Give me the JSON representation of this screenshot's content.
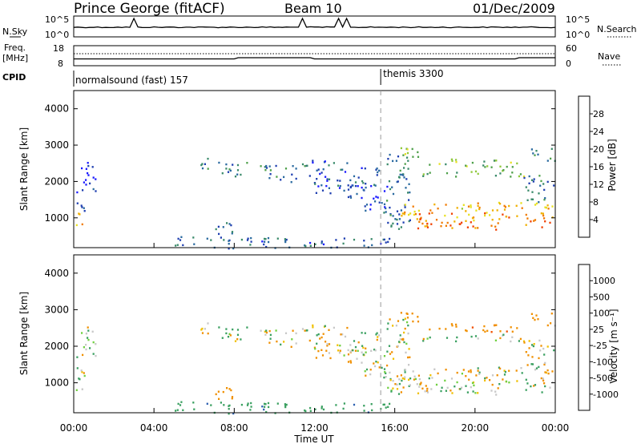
{
  "header": {
    "station": "Prince George (fitACF)",
    "beam": "Beam 10",
    "date": "01/Dec/2009"
  },
  "strip1": {
    "left_label": "N.Sky",
    "right_label": "N.Search",
    "left_ticks": [
      "10^5",
      "10^0"
    ],
    "right_ticks": [
      "10^5",
      "10^0"
    ]
  },
  "strip2": {
    "left_label_line1": "Freq.",
    "left_label_line2": "[MHz]",
    "right_label": "Nave",
    "left_ticks": [
      "18",
      "8"
    ],
    "right_ticks": [
      "60",
      "0"
    ]
  },
  "cpid": {
    "label": "CPID",
    "mode1": "normalsound (fast) 157",
    "mode2": "themis 3300"
  },
  "x_axis": {
    "label": "Time UT",
    "ticks": [
      "00:00",
      "04:00",
      "08:00",
      "12:00",
      "16:00",
      "20:00",
      "00:00"
    ]
  },
  "panel_top": {
    "ylabel": "Slant Range [km]",
    "yticks": [
      "4000",
      "3000",
      "2000",
      "1000"
    ],
    "colorbar_label": "Power [dB]",
    "colorbar_ticks": [
      "28",
      "24",
      "20",
      "16",
      "12",
      "8",
      "4"
    ],
    "colors": [
      "#1a1aff",
      "#1f3fb0",
      "#2a6aa0",
      "#3a8a6a",
      "#4ea04a",
      "#8fc83a",
      "#e8e020",
      "#f0b000",
      "#f07a00",
      "#f04000",
      "#e00000"
    ]
  },
  "panel_bottom": {
    "ylabel": "Slant Range [km]",
    "yticks": [
      "4000",
      "3000",
      "2000",
      "1000"
    ],
    "colorbar_label": "Velocity [m s⁻¹]",
    "colorbar_ticks": [
      "1000",
      "500",
      "100",
      "25",
      "-25",
      "-100",
      "-500",
      "-1000"
    ],
    "colors": [
      "#1a1aff",
      "#2b5fb0",
      "#3aa060",
      "#70d040",
      "#c8c8c8",
      "#c8c8c8",
      "#f0c000",
      "#f09000",
      "#f05000",
      "#e00000"
    ]
  },
  "chart_data": {
    "type": "heatmap",
    "x_range_hours": [
      0,
      24
    ],
    "y_range_km": [
      180,
      4500
    ],
    "mode_change_hour": 15.3,
    "echo_regions": [
      {
        "t0": 0.0,
        "t1": 0.4,
        "r0": 750,
        "r1": 1250,
        "power": 22,
        "vel": 0
      },
      {
        "t0": 0.1,
        "t1": 0.6,
        "r0": 1200,
        "r1": 2000,
        "power": 7,
        "vel": 0
      },
      {
        "t0": 0.3,
        "t1": 1.1,
        "r0": 1700,
        "r1": 2700,
        "power": 5,
        "vel": 0
      },
      {
        "t0": 6.0,
        "t1": 6.8,
        "r0": 2350,
        "r1": 2700,
        "power": 7,
        "vel": 0
      },
      {
        "t0": 6.6,
        "t1": 8.6,
        "r0": 2150,
        "r1": 2550,
        "power": 11,
        "vel": 0
      },
      {
        "t0": 9.2,
        "t1": 11.8,
        "r0": 2000,
        "r1": 2500,
        "power": 10,
        "vel": 0
      },
      {
        "t0": 11.8,
        "t1": 15.2,
        "r0": 1700,
        "r1": 2600,
        "power": 7,
        "vel": 0
      },
      {
        "t0": 13.6,
        "t1": 15.6,
        "r0": 1200,
        "r1": 2000,
        "power": 6,
        "vel": 0
      },
      {
        "t0": 15.3,
        "t1": 16.8,
        "r0": 700,
        "r1": 2800,
        "power": 9,
        "vel": 0
      },
      {
        "t0": 16.3,
        "t1": 24.0,
        "r0": 1050,
        "r1": 1450,
        "power": 21,
        "vel": -20
      },
      {
        "t0": 16.8,
        "t1": 24.0,
        "r0": 700,
        "r1": 1150,
        "power": 24,
        "vel": 10
      },
      {
        "t0": 16.2,
        "t1": 17.2,
        "r0": 2600,
        "r1": 3100,
        "power": 17,
        "vel": -150
      },
      {
        "t0": 17.3,
        "t1": 22.4,
        "r0": 2400,
        "r1": 2650,
        "power": 16,
        "vel": -200
      },
      {
        "t0": 17.3,
        "t1": 22.6,
        "r0": 2150,
        "r1": 2350,
        "power": 14,
        "vel": 50
      },
      {
        "t0": 22.4,
        "t1": 24.0,
        "r0": 1400,
        "r1": 2200,
        "power": 10,
        "vel": 0
      },
      {
        "t0": 22.7,
        "t1": 24.0,
        "r0": 2550,
        "r1": 2950,
        "power": 12,
        "vel": -100
      },
      {
        "t0": 7.0,
        "t1": 8.2,
        "r0": 500,
        "r1": 900,
        "power": 9,
        "vel": -150
      },
      {
        "t0": 5.0,
        "t1": 16.0,
        "r0": 180,
        "r1": 500,
        "power": 8,
        "vel": 200
      }
    ]
  }
}
